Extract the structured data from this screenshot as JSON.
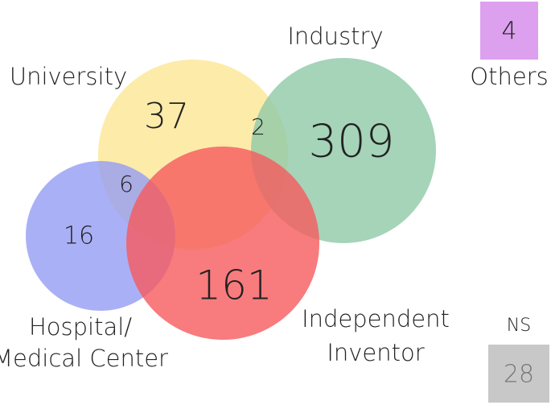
{
  "sets": [
    {
      "label": [
        "University"
      ]
    },
    {
      "label": [
        "Industry"
      ]
    },
    {
      "label": [
        "Hospital/",
        "Medical Center"
      ]
    },
    {
      "label": [
        "Independent",
        "Inventor"
      ]
    }
  ],
  "regions": [
    {
      "value": 37
    },
    {
      "value": 2
    },
    {
      "value": 309
    },
    {
      "value": 6
    },
    {
      "value": 16
    },
    {
      "value": 161
    }
  ],
  "others": {
    "label": "Others",
    "value": 4
  },
  "ns": {
    "label": "NS",
    "value": 28
  }
}
